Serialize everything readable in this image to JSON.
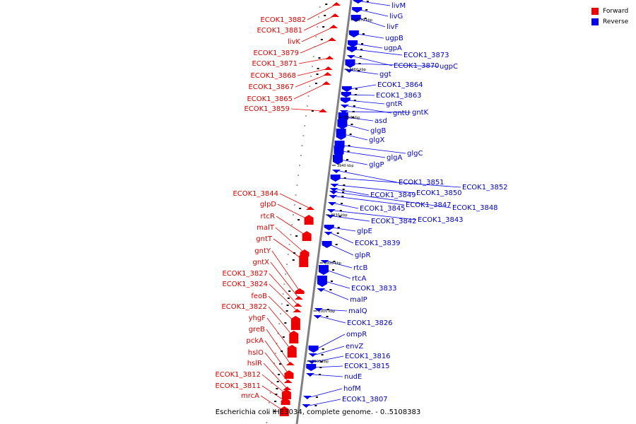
{
  "legend": [
    {
      "label": "Forward",
      "color": "#ee0000"
    },
    {
      "label": "Reverse",
      "color": "#0000ee"
    }
  ],
  "caption": "Escherichia coli IHE3034, complete genome. - 0..5108383",
  "colors": {
    "forward": "#ee0000",
    "reverse": "#0000ee",
    "axis": "#808080"
  },
  "coordinates": [
    "3970 kbp",
    "3960 kbp",
    "3950 kbp",
    "3940 kbp",
    "3930 kbp",
    "3920 kbp",
    "3910 kbp",
    "3900 kbp"
  ],
  "forward_genes": [
    "ECOK1_3882",
    "ECOK1_3881",
    "livK",
    "ECOK1_3879",
    "ECOK1_3871",
    "ECOK1_3868",
    "ECOK1_3867",
    "ECOK1_3865",
    "ECOK1_3859",
    "ECOK1_3844",
    "glpD",
    "rtcR",
    "malT",
    "gntT",
    "gntY",
    "gntX",
    "ECOK1_3827",
    "ECOK1_3824",
    "feoB",
    "ECOK1_3822",
    "yhgF",
    "greB",
    "pckA",
    "hslO",
    "hslR",
    "ECOK1_3812",
    "ECOK1_3811",
    "mrcA"
  ],
  "reverse_genes": [
    "livM",
    "livG",
    "livF",
    "ugpB",
    "ugpA",
    "ECOK1_3873",
    "ECOK1_3870",
    "ugpC",
    "ggt",
    "ECOK1_3864",
    "ECOK1_3863",
    "gntR",
    "gntU",
    "gntK",
    "asd",
    "glgB",
    "glgX",
    "glgC",
    "glgA",
    "glgP",
    "ECOK1_3851",
    "ECOK1_3852",
    "ECOK1_3850",
    "ECOK1_3849",
    "ECOK1_3848",
    "ECOK1_3847",
    "ECOK1_3845",
    "ECOK1_3843",
    "ECOK1_3842",
    "glpE",
    "ECOK1_3839",
    "glpR",
    "rtcB",
    "rtcA",
    "ECOK1_3833",
    "malP",
    "malQ",
    "ECOK1_3826",
    "ompR",
    "envZ",
    "ECOK1_3816",
    "ECOK1_3815",
    "nudE",
    "hofM",
    "ECOK1_3807"
  ]
}
